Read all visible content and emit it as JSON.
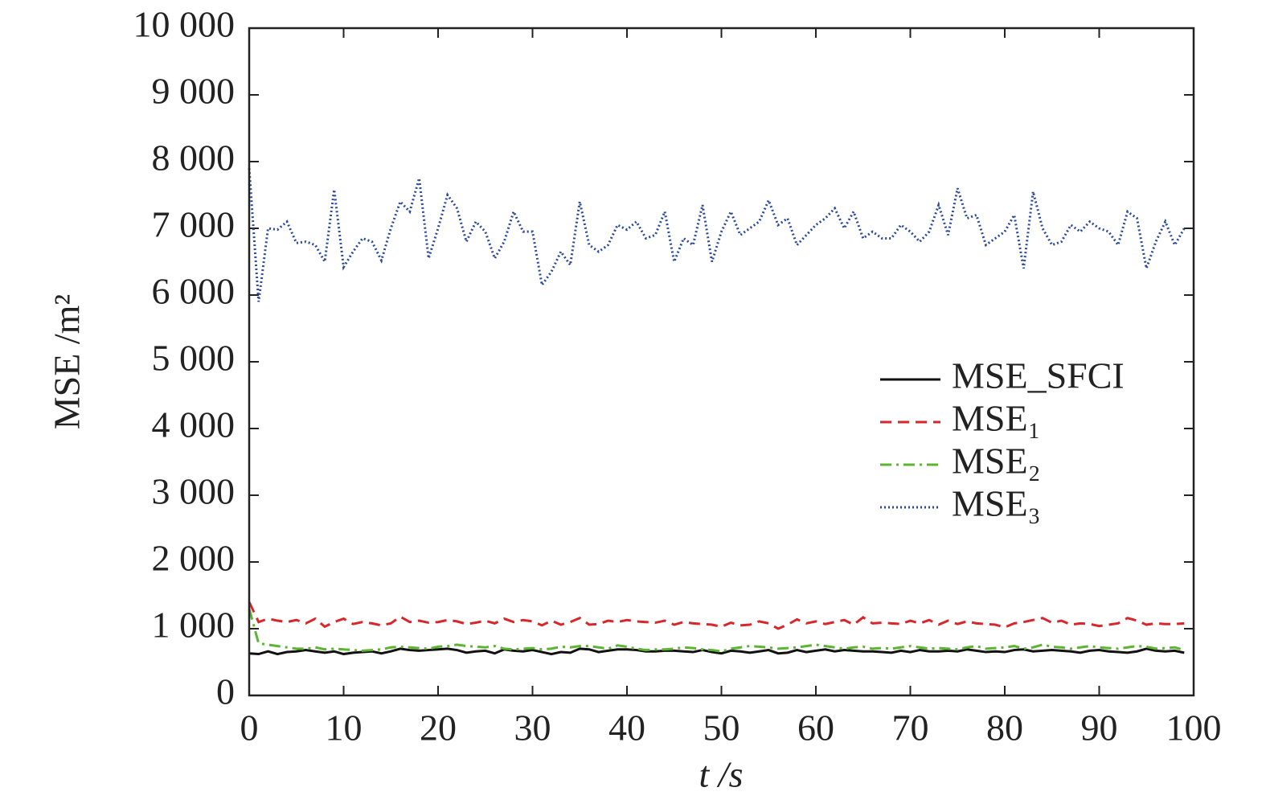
{
  "chart_data": {
    "type": "line",
    "xlabel": "t /s",
    "ylabel": "MSE /m²",
    "xlim": [
      0,
      100
    ],
    "xticks": [
      0,
      10,
      20,
      30,
      40,
      50,
      60,
      70,
      80,
      90,
      100
    ],
    "ylim": [
      0,
      10000
    ],
    "yticks": [
      0,
      {
        "value": 1000,
        "label": "1 000"
      },
      {
        "value": 2000,
        "label": "2 000"
      },
      {
        "value": 3000,
        "label": "3 000"
      },
      {
        "value": 4000,
        "label": "4 000"
      },
      {
        "value": 5000,
        "label": "5 000"
      },
      {
        "value": 6000,
        "label": "6 000"
      },
      {
        "value": 7000,
        "label": "7 000"
      },
      {
        "value": 8000,
        "label": "8 000"
      },
      {
        "value": 9000,
        "label": "9 000"
      },
      {
        "value": 10000,
        "label": "10 000"
      }
    ],
    "grid": false,
    "legend": "right",
    "x": [
      0,
      1,
      2,
      3,
      4,
      5,
      6,
      7,
      8,
      9,
      10,
      11,
      12,
      13,
      14,
      15,
      16,
      17,
      18,
      19,
      20,
      21,
      22,
      23,
      24,
      25,
      26,
      27,
      28,
      29,
      30,
      31,
      32,
      33,
      34,
      35,
      36,
      37,
      38,
      39,
      40,
      41,
      42,
      43,
      44,
      45,
      46,
      47,
      48,
      49,
      50,
      51,
      52,
      53,
      54,
      55,
      56,
      57,
      58,
      59,
      60,
      61,
      62,
      63,
      64,
      65,
      66,
      67,
      68,
      69,
      70,
      71,
      72,
      73,
      74,
      75,
      76,
      77,
      78,
      79,
      80,
      81,
      82,
      83,
      84,
      85,
      86,
      87,
      88,
      89,
      90,
      91,
      92,
      93,
      94,
      95,
      96,
      97,
      98,
      99
    ],
    "series": [
      {
        "name": "MSE_SFCI",
        "color": "#111111",
        "style": "solid",
        "values": [
          630,
          620,
          660,
          620,
          650,
          660,
          680,
          660,
          640,
          660,
          620,
          640,
          650,
          660,
          630,
          660,
          700,
          680,
          670,
          680,
          690,
          700,
          680,
          640,
          660,
          670,
          630,
          690,
          670,
          660,
          680,
          650,
          620,
          650,
          640,
          700,
          690,
          650,
          670,
          690,
          690,
          680,
          660,
          660,
          670,
          670,
          660,
          650,
          680,
          650,
          630,
          670,
          660,
          640,
          660,
          680,
          630,
          640,
          680,
          650,
          670,
          690,
          660,
          680,
          670,
          660,
          660,
          650,
          640,
          670,
          650,
          680,
          660,
          660,
          670,
          660,
          690,
          670,
          650,
          660,
          650,
          680,
          690,
          660,
          670,
          680,
          670,
          660,
          640,
          670,
          680,
          660,
          650,
          640,
          660,
          700,
          670,
          660,
          670,
          640
        ]
      },
      {
        "name": "MSE₁",
        "color": "#d9262b",
        "style": "dashed",
        "values": [
          1400,
          1100,
          1150,
          1120,
          1100,
          1130,
          1080,
          1150,
          1030,
          1100,
          1150,
          1070,
          1100,
          1080,
          1050,
          1080,
          1180,
          1100,
          1120,
          1090,
          1100,
          1130,
          1110,
          1070,
          1090,
          1120,
          1080,
          1150,
          1100,
          1130,
          1110,
          1050,
          1120,
          1060,
          1100,
          1160,
          1060,
          1070,
          1120,
          1100,
          1130,
          1110,
          1100,
          1090,
          1120,
          1060,
          1100,
          1080,
          1070,
          1060,
          1030,
          1090,
          1050,
          1060,
          1110,
          1080,
          1000,
          1060,
          1140,
          1080,
          1110,
          1070,
          1100,
          1130,
          1060,
          1170,
          1080,
          1090,
          1080,
          1070,
          1120,
          1080,
          1130,
          1060,
          1120,
          1070,
          1110,
          1080,
          1070,
          1060,
          1020,
          1080,
          1100,
          1130,
          1160,
          1090,
          1120,
          1060,
          1080,
          1070,
          1040,
          1060,
          1080,
          1160,
          1120,
          1060,
          1080,
          1070,
          1070,
          1080
        ]
      },
      {
        "name": "MSE₂",
        "color": "#5cb531",
        "style": "dashdot",
        "values": [
          1300,
          780,
          760,
          740,
          720,
          700,
          700,
          720,
          690,
          700,
          690,
          680,
          670,
          680,
          690,
          720,
          730,
          720,
          710,
          700,
          730,
          740,
          760,
          740,
          730,
          720,
          740,
          700,
          690,
          700,
          710,
          690,
          700,
          730,
          720,
          740,
          740,
          720,
          700,
          750,
          730,
          700,
          680,
          690,
          690,
          700,
          720,
          710,
          690,
          680,
          660,
          700,
          720,
          740,
          730,
          720,
          700,
          710,
          720,
          740,
          760,
          740,
          720,
          700,
          720,
          730,
          700,
          710,
          700,
          720,
          740,
          720,
          700,
          710,
          700,
          690,
          720,
          740,
          700,
          710,
          720,
          740,
          700,
          720,
          760,
          730,
          720,
          700,
          720,
          740,
          720,
          710,
          700,
          720,
          740,
          730,
          700,
          710,
          720,
          680
        ]
      },
      {
        "name": "MSE₃",
        "color": "#2c4a9c",
        "style": "dotted",
        "values": [
          7900,
          5900,
          7000,
          6980,
          7100,
          6780,
          6800,
          6750,
          6500,
          7580,
          6420,
          6650,
          6850,
          6800,
          6520,
          7000,
          7400,
          7250,
          7750,
          6550,
          7000,
          7500,
          7300,
          6800,
          7100,
          6950,
          6550,
          6800,
          7250,
          6950,
          6950,
          6150,
          6350,
          6650,
          6450,
          7400,
          6750,
          6650,
          6750,
          7050,
          6980,
          7100,
          6850,
          6900,
          7250,
          6500,
          6850,
          6750,
          7350,
          6500,
          6950,
          7250,
          6900,
          7000,
          7100,
          7420,
          7050,
          7150,
          6750,
          6900,
          7050,
          7150,
          7300,
          7000,
          7250,
          6850,
          6950,
          6850,
          6850,
          7050,
          6950,
          6800,
          6950,
          7350,
          6900,
          7600,
          7150,
          7200,
          6750,
          6850,
          6950,
          7200,
          6400,
          7550,
          7000,
          6750,
          6800,
          7050,
          6950,
          7100,
          7000,
          6950,
          6750,
          7250,
          7150,
          6400,
          6800,
          7100,
          6750,
          7000
        ]
      }
    ]
  }
}
